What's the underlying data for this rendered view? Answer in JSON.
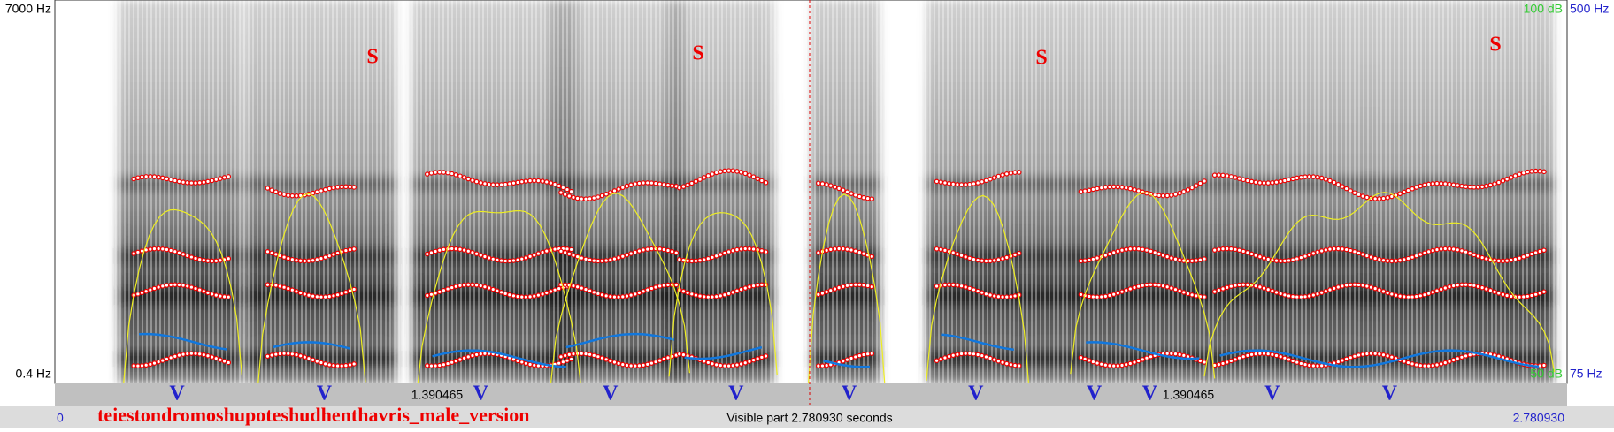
{
  "window": {
    "left_axis": {
      "top": "7000 Hz",
      "bottom": "0.4 Hz"
    },
    "right_axis": {
      "intensity_top": "100 dB",
      "pitch_top": "500 Hz",
      "intensity_bottom": "50 dB",
      "pitch_bottom": "75 Hz"
    },
    "segment_marks": [
      "S",
      "S",
      "S",
      "S"
    ],
    "vowel_marks": [
      "V",
      "V",
      "V",
      "V",
      "V",
      "V",
      "V",
      "V",
      "V",
      "V",
      "V"
    ],
    "cursor_labels": [
      "1.390465",
      "1.390465"
    ],
    "status_bar": {
      "start": "0",
      "file_name": "teiestondromoshupoteshudhenthavris_male_version",
      "visible_part": "Visible part 2.780930 seconds",
      "end": "2.780930"
    }
  }
}
